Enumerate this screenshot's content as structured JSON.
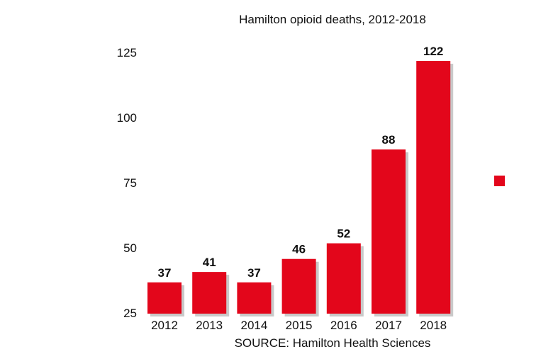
{
  "chart_data": {
    "type": "bar",
    "title": "Hamilton opioid deaths, 2012-2018",
    "source": "SOURCE: Hamilton Health Sciences",
    "categories": [
      "2012",
      "2013",
      "2014",
      "2015",
      "2016",
      "2017",
      "2018"
    ],
    "values": [
      37,
      41,
      37,
      46,
      52,
      88,
      122
    ],
    "ylim": [
      25,
      125
    ],
    "yticks": [
      "125",
      "100",
      "75",
      "50",
      "25"
    ],
    "grid": false,
    "legend": "right",
    "bar_color": "#e3061b",
    "shadow_color": "#c9c9c9"
  }
}
